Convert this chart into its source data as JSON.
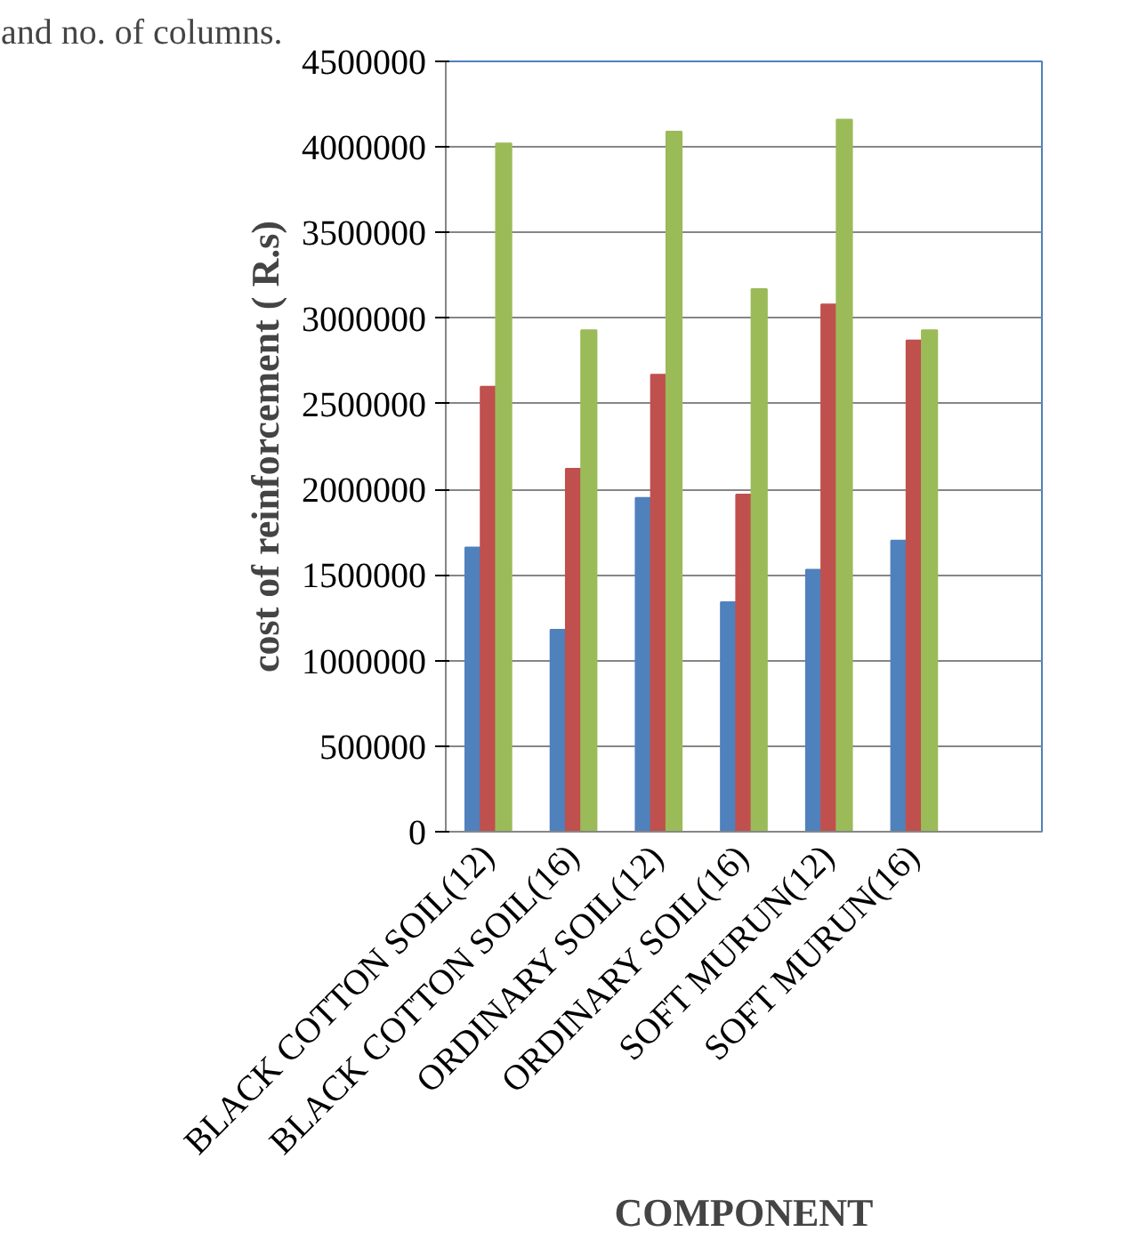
{
  "chart_data": {
    "type": "bar",
    "annotations": [
      "and no. of columns."
    ],
    "xlabel": "COMPONENT",
    "ylabel": "cost of reinforcement ( R.s)",
    "categories": [
      "BLACK COTTON SOIL(12)",
      "BLACK COTTON SOIL(16)",
      "ORDINARY SOIL(12)",
      "ORDINARY SOIL(16)",
      "SOFT MURUN(12)",
      "SOFT MURUN(16)",
      null
    ],
    "series": [
      {
        "color": "#4f81bd",
        "values": [
          1660000,
          1180000,
          1950000,
          1340000,
          1530000,
          1700000,
          null
        ]
      },
      {
        "color": "#c0504d",
        "values": [
          2600000,
          2120000,
          2670000,
          1970000,
          3080000,
          2870000,
          null
        ]
      },
      {
        "color": "#9bbb59",
        "values": [
          4020000,
          2930000,
          4090000,
          3170000,
          4160000,
          2930000,
          null
        ]
      }
    ],
    "ylim": [
      0,
      4500000
    ],
    "yticks": [
      0,
      500000,
      1000000,
      1500000,
      2000000,
      2500000,
      3000000,
      3500000,
      4000000,
      4500000
    ],
    "grid": "y"
  }
}
